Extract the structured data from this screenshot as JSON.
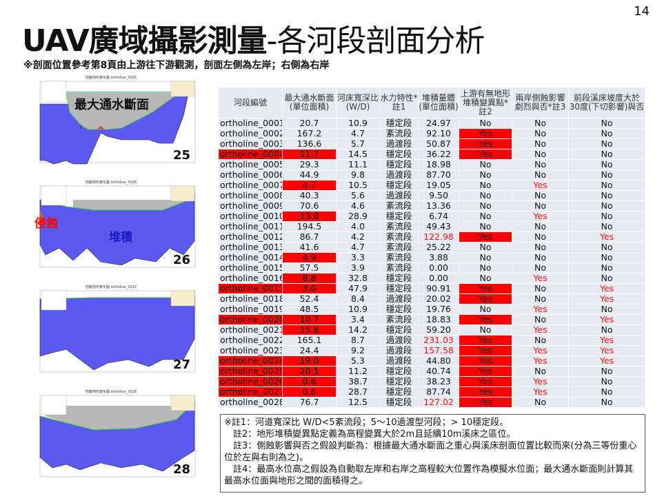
{
  "page_number": "14",
  "title": {
    "bold": "UAV廣域攝影測量",
    "light": "-各河段剖面分析"
  },
  "subtitle": "※剖面位置參考第8頁由上游往下游觀測，剖面左側為左岸；右側為右岸",
  "charts": [
    {
      "title": "剖面地形變化圖 ortholine_0025",
      "number": "25",
      "overlay": "最大通水斷面"
    },
    {
      "title": "剖面地形變化圖 ortholine_0026",
      "number": "26",
      "overlay_erosion": "侵蝕",
      "overlay_deposit": "堆積"
    },
    {
      "title": "剖面地形變化圖 ortholine_0027",
      "number": "27"
    },
    {
      "title": "剖面地形變化圖 ortholine_0028",
      "number": "28"
    }
  ],
  "colors": {
    "deposit": "#5a5af0",
    "erosion": "#e05050",
    "water": "#b8b8b8",
    "highlight": "#ff0000"
  },
  "table": {
    "headers": [
      "河段編號",
      "最大通水斷面(單位面積)",
      "河床寬深比(W/D)",
      "水力特性*註1",
      "堆積量體(單位面積)",
      "上游有無地形堆積變異點*註2",
      "兩岸側蝕影響劇烈與否*註3",
      "前段溪床坡度大於30度(下切影響)與否"
    ],
    "rows": [
      [
        "ortholine_0001",
        "20.7",
        "10.9",
        "穩定段",
        "24.97",
        "No",
        "No",
        "No"
      ],
      [
        "ortholine_0002",
        "167.2",
        "4.7",
        "紊流段",
        "92.10",
        "Yes",
        "No",
        "No"
      ],
      [
        "ortholine_0003",
        "136.6",
        "5.7",
        "過渡段",
        "50.87",
        "Yes",
        "No",
        "No"
      ],
      [
        "ortholine_0004",
        "11.7",
        "14.5",
        "穩定段",
        "36.22",
        "Yes",
        "No",
        "No"
      ],
      [
        "ortholine_0005",
        "29.3",
        "11.1",
        "穩定段",
        "18.98",
        "No",
        "No",
        "No"
      ],
      [
        "ortholine_0006",
        "44.9",
        "9.8",
        "過渡段",
        "87.70",
        "No",
        "No",
        "No"
      ],
      [
        "ortholine_0007",
        "4.7",
        "10.5",
        "穩定段",
        "19.05",
        "No",
        "Yes",
        "No"
      ],
      [
        "ortholine_0008",
        "40.3",
        "5.6",
        "過渡段",
        "9.50",
        "No",
        "No",
        "No"
      ],
      [
        "ortholine_0009",
        "70.6",
        "4.6",
        "紊流段",
        "13.36",
        "No",
        "No",
        "No"
      ],
      [
        "ortholine_0010",
        "13.8",
        "28.9",
        "穩定段",
        "6.74",
        "No",
        "Yes",
        "No"
      ],
      [
        "ortholine_0011",
        "194.5",
        "4.0",
        "紊流段",
        "49.43",
        "No",
        "No",
        "No"
      ],
      [
        "ortholine_0012",
        "86.7",
        "4.2",
        "紊流段",
        "122.98",
        "Yes",
        "No",
        "Yes"
      ],
      [
        "ortholine_0013",
        "41.6",
        "4.7",
        "紊流段",
        "25.22",
        "No",
        "No",
        "No"
      ],
      [
        "ortholine_0014",
        "4.9",
        "3.3",
        "紊流段",
        "3.88",
        "No",
        "No",
        "No"
      ],
      [
        "ortholine_0015",
        "57.5",
        "3.9",
        "紊流段",
        "0.00",
        "No",
        "No",
        "No"
      ],
      [
        "ortholine_0016",
        "8.8",
        "32.8",
        "穩定段",
        "0.00",
        "No",
        "Yes",
        "No"
      ],
      [
        "ortholine_0017",
        "3.0",
        "47.9",
        "穩定段",
        "90.91",
        "Yes",
        "No",
        "Yes"
      ],
      [
        "ortholine_0018",
        "52.4",
        "8.4",
        "過渡段",
        "20.02",
        "Yes",
        "No",
        "Yes"
      ],
      [
        "ortholine_0019",
        "48.5",
        "10.9",
        "穩定段",
        "19.76",
        "No",
        "Yes",
        "No"
      ],
      [
        "ortholine_0020",
        "10.7",
        "3.4",
        "紊流段",
        "18.83",
        "Yes",
        "No",
        "Yes"
      ],
      [
        "ortholine_0021",
        "15.8",
        "14.2",
        "穩定段",
        "59.20",
        "No",
        "Yes",
        "No"
      ],
      [
        "ortholine_0022",
        "165.1",
        "8.7",
        "過渡段",
        "231.03",
        "Yes",
        "No",
        "Yes"
      ],
      [
        "ortholine_0023",
        "24.4",
        "9.2",
        "過渡段",
        "157.58",
        "Yes",
        "Yes",
        "Yes"
      ],
      [
        "ortholine_0024",
        "19.0",
        "5.3",
        "過渡段",
        "44.80",
        "Yes",
        "Yes",
        "Yes"
      ],
      [
        "ortholine_0025",
        "20.1",
        "11.2",
        "穩定段",
        "40.74",
        "Yes",
        "No",
        "No"
      ],
      [
        "ortholine_0026",
        "0.6",
        "38.7",
        "穩定段",
        "38.23",
        "Yes",
        "Yes",
        "No"
      ],
      [
        "ortholine_0027",
        "0.6",
        "28.7",
        "穩定段",
        "87.74",
        "Yes",
        "Yes",
        "No"
      ],
      [
        "ortholine_0028",
        "76.7",
        "12.5",
        "穩定段",
        "127.02",
        "Yes",
        "No",
        "No"
      ]
    ],
    "highlight_name": [
      "ortholine_0004",
      "ortholine_0017",
      "ortholine_0020",
      "ortholine_0024",
      "ortholine_0025",
      "ortholine_0026",
      "ortholine_0027"
    ],
    "highlight_area": [
      "ortholine_0004",
      "ortholine_0007",
      "ortholine_0010",
      "ortholine_0014",
      "ortholine_0016",
      "ortholine_0017",
      "ortholine_0020",
      "ortholine_0021",
      "ortholine_0024",
      "ortholine_0025",
      "ortholine_0026",
      "ortholine_0027"
    ],
    "red_volume": [
      "ortholine_0012",
      "ortholine_0022",
      "ortholine_0023",
      "ortholine_0028"
    ]
  },
  "notes": [
    "※註1：河道寬深比 W/D<5紊流段；5～10過渡型河段；> 10穩定段。",
    "　註2：地形堆積變異點定義為高程變異大於2m且延續10m溪床之區位。",
    "　註3：側蝕影響與否之假設判斷為：根據最大通水斷面之重心與溪床剖面位置比較而來(分為三等份重心位於左與右則為之)。",
    "　註4：最高水位高之假設為自動取左岸和右岸之高程較大位置作為模擬水位面；最大通水斷面則計算其最高水位面與地形之間的面積得之。"
  ]
}
